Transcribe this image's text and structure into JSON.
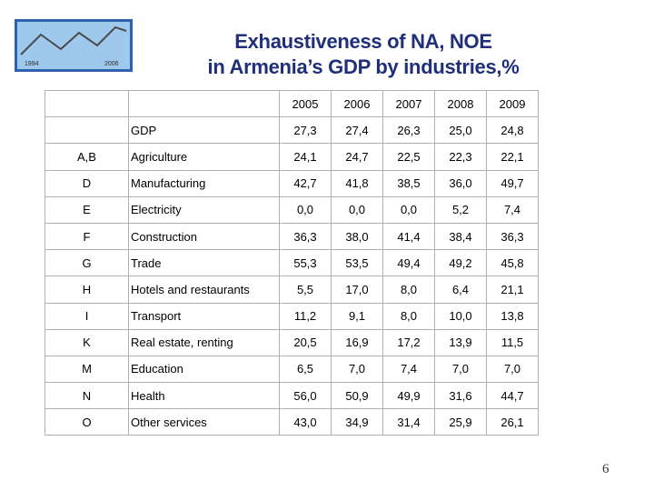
{
  "logo": {
    "left_label": "1994",
    "right_label": "2006",
    "colors": {
      "panel": "#9fc9ec",
      "border": "#2b63b0",
      "line": "#4a4a4a"
    }
  },
  "title": {
    "line1": "Exhaustiveness of NA, NOE",
    "line2": "in Armenia’s GDP by industries,%"
  },
  "table": {
    "years": [
      "2005",
      "2006",
      "2007",
      "2008",
      "2009"
    ],
    "rows": [
      {
        "code": "",
        "name": "GDP",
        "values": [
          "27,3",
          "27,4",
          "26,3",
          "25,0",
          "24,8"
        ]
      },
      {
        "code": "A,B",
        "name": "Agriculture",
        "values": [
          "24,1",
          "24,7",
          "22,5",
          "22,3",
          "22,1"
        ]
      },
      {
        "code": "D",
        "name": "Manufacturing",
        "values": [
          "42,7",
          "41,8",
          "38,5",
          "36,0",
          "49,7"
        ]
      },
      {
        "code": "E",
        "name": "Electricity",
        "values": [
          "0,0",
          "0,0",
          "0,0",
          "5,2",
          "7,4"
        ]
      },
      {
        "code": "F",
        "name": "Construction",
        "values": [
          "36,3",
          "38,0",
          "41,4",
          "38,4",
          "36,3"
        ]
      },
      {
        "code": "G",
        "name": "Trade",
        "values": [
          "55,3",
          "53,5",
          "49,4",
          "49,2",
          "45,8"
        ]
      },
      {
        "code": "H",
        "name": "Hotels and restaurants",
        "values": [
          "5,5",
          "17,0",
          "8,0",
          "6,4",
          "21,1"
        ]
      },
      {
        "code": "I",
        "name": "Transport",
        "values": [
          "11,2",
          "9,1",
          "8,0",
          "10,0",
          "13,8"
        ]
      },
      {
        "code": "K",
        "name": "Real estate, renting",
        "values": [
          "20,5",
          "16,9",
          "17,2",
          "13,9",
          "11,5"
        ]
      },
      {
        "code": "M",
        "name": "Education",
        "values": [
          "6,5",
          "7,0",
          "7,4",
          "7,0",
          "7,0"
        ]
      },
      {
        "code": "N",
        "name": "Health",
        "values": [
          "56,0",
          "50,9",
          "49,9",
          "31,6",
          "44,7"
        ]
      },
      {
        "code": "O",
        "name": "Other services",
        "values": [
          "43,0",
          "34,9",
          "31,4",
          "25,9",
          "26,1"
        ]
      }
    ]
  },
  "page_number": "6"
}
